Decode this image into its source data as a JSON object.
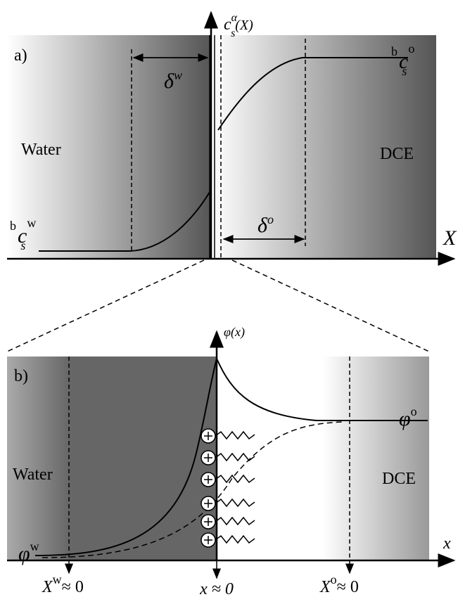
{
  "panel_a": {
    "label": "a)",
    "y_axis": {
      "base": "c",
      "sub": "s",
      "sup": "α",
      "arg": "(X)"
    },
    "x_axis": "X",
    "water": "Water",
    "dce": "DCE",
    "delta_w": {
      "base": "δ",
      "sup": "w"
    },
    "delta_o": {
      "base": "δ",
      "sup": "o"
    },
    "bulk_w": {
      "pre": "b",
      "base": "c",
      "sub": "s",
      "sup": "w"
    },
    "bulk_o": {
      "pre": "b",
      "base": "c",
      "sub": "s",
      "sup": "o"
    }
  },
  "panel_b": {
    "label": "b)",
    "y_axis": "φ(x)",
    "x_axis": "x",
    "water": "Water",
    "dce": "DCE",
    "phi_w": {
      "base": "φ",
      "sup": "w"
    },
    "phi_o": {
      "base": "φ",
      "sup": "o"
    },
    "x_w": {
      "base": "X",
      "sup": "w",
      "rest": "≈ 0"
    },
    "x_0": "x ≈ 0",
    "x_o": {
      "base": "X",
      "sup": "o",
      "rest": "≈ 0"
    }
  }
}
